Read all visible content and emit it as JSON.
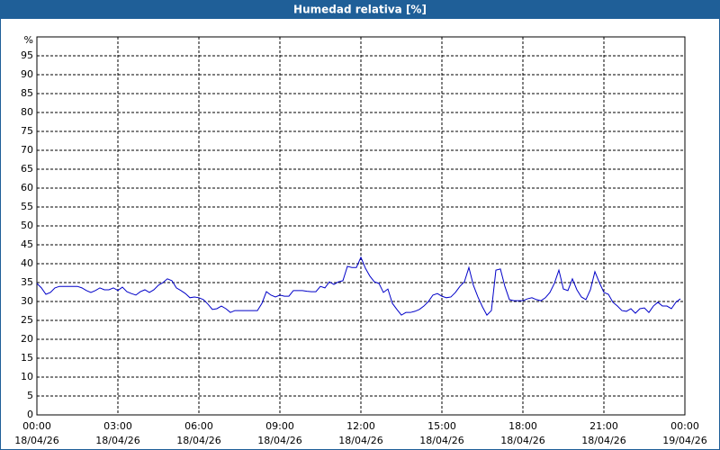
{
  "chart_data": {
    "type": "line",
    "title": "Humedad relativa [%]",
    "y_label": "%",
    "xlim": [
      0,
      1440
    ],
    "ylim": [
      0,
      100
    ],
    "xticks": [
      {
        "value": 0,
        "label": "00:00"
      },
      {
        "value": 180,
        "label": "03:00"
      },
      {
        "value": 360,
        "label": "06:00"
      },
      {
        "value": 540,
        "label": "09:00"
      },
      {
        "value": 720,
        "label": "12:00"
      },
      {
        "value": 900,
        "label": "15:00"
      },
      {
        "value": 1080,
        "label": "18:00"
      },
      {
        "value": 1260,
        "label": "21:00"
      },
      {
        "value": 1440,
        "label": "00:00"
      }
    ],
    "xtick_dates": [
      "18/04/26",
      "18/04/26",
      "18/04/26",
      "18/04/26",
      "18/04/26",
      "18/04/26",
      "18/04/26",
      "18/04/26",
      "19/04/26"
    ],
    "yticks": [
      0,
      5,
      10,
      15,
      20,
      25,
      30,
      35,
      40,
      45,
      50,
      55,
      60,
      65,
      70,
      75,
      80,
      85,
      90,
      95
    ],
    "grid": true,
    "x": [
      0,
      10,
      20,
      30,
      40,
      50,
      60,
      70,
      80,
      90,
      100,
      110,
      120,
      130,
      140,
      150,
      160,
      170,
      180,
      190,
      200,
      210,
      220,
      230,
      240,
      250,
      260,
      270,
      280,
      290,
      300,
      310,
      320,
      330,
      340,
      350,
      360,
      370,
      380,
      390,
      400,
      410,
      420,
      430,
      440,
      450,
      460,
      470,
      480,
      490,
      500,
      510,
      520,
      530,
      540,
      550,
      560,
      570,
      580,
      590,
      600,
      610,
      620,
      630,
      640,
      650,
      660,
      670,
      680,
      690,
      700,
      710,
      720,
      730,
      740,
      750,
      760,
      770,
      780,
      790,
      800,
      810,
      820,
      830,
      840,
      850,
      860,
      870,
      880,
      890,
      900,
      910,
      920,
      930,
      940,
      950,
      960,
      970,
      980,
      990,
      1000,
      1010,
      1020,
      1030,
      1040,
      1050,
      1060,
      1070,
      1080,
      1090,
      1100,
      1110,
      1120,
      1130,
      1140,
      1150,
      1160,
      1170,
      1180,
      1190,
      1200,
      1210,
      1220,
      1230,
      1240,
      1250,
      1260,
      1270,
      1280,
      1290,
      1300,
      1310,
      1320,
      1330,
      1340,
      1350,
      1360,
      1370,
      1380,
      1390,
      1400,
      1410,
      1420,
      1430
    ],
    "series": [
      {
        "name": "Humedad relativa",
        "color": "#0000c8",
        "values": [
          34.8,
          33.6,
          31.9,
          32.4,
          33.6,
          34,
          34,
          34,
          34,
          34,
          33.6,
          32.9,
          32.4,
          32.9,
          33.6,
          33.1,
          33.1,
          33.6,
          32.9,
          33.8,
          32.6,
          32.1,
          31.7,
          32.6,
          33.1,
          32.4,
          33.1,
          34.3,
          35,
          36,
          35.5,
          33.6,
          32.9,
          32.1,
          31,
          31.2,
          31,
          30.5,
          29.3,
          27.9,
          28.1,
          28.8,
          28.1,
          27.1,
          27.6,
          27.6,
          27.6,
          27.6,
          27.6,
          27.6,
          29.5,
          32.6,
          31.7,
          31.2,
          31.7,
          31.4,
          31.4,
          32.9,
          32.9,
          32.9,
          32.7,
          32.6,
          32.6,
          34,
          33.6,
          35.2,
          34.5,
          35.2,
          35.5,
          39.3,
          39,
          39,
          41.7,
          38.8,
          36.7,
          35.2,
          34.8,
          32.4,
          33.3,
          29.5,
          27.9,
          26.4,
          27.1,
          27.1,
          27.4,
          27.9,
          28.8,
          30,
          31.7,
          32.1,
          31.4,
          31,
          31.2,
          32.4,
          34,
          35.2,
          39,
          34.3,
          31.2,
          28.6,
          26.4,
          27.6,
          38.3,
          38.6,
          34,
          30.5,
          30.2,
          30.2,
          30.2,
          30.7,
          31,
          30.5,
          30.2,
          31,
          32.4,
          34.8,
          38.3,
          33.3,
          32.9,
          36,
          33.1,
          31.2,
          30.5,
          33.1,
          37.9,
          35,
          32.4,
          31.9,
          29.8,
          28.8,
          27.6,
          27.4,
          28.1,
          26.9,
          28.1,
          28.3,
          27.1,
          28.8,
          29.8,
          28.8,
          28.8,
          28.1,
          29.8,
          30.7
        ]
      }
    ]
  }
}
